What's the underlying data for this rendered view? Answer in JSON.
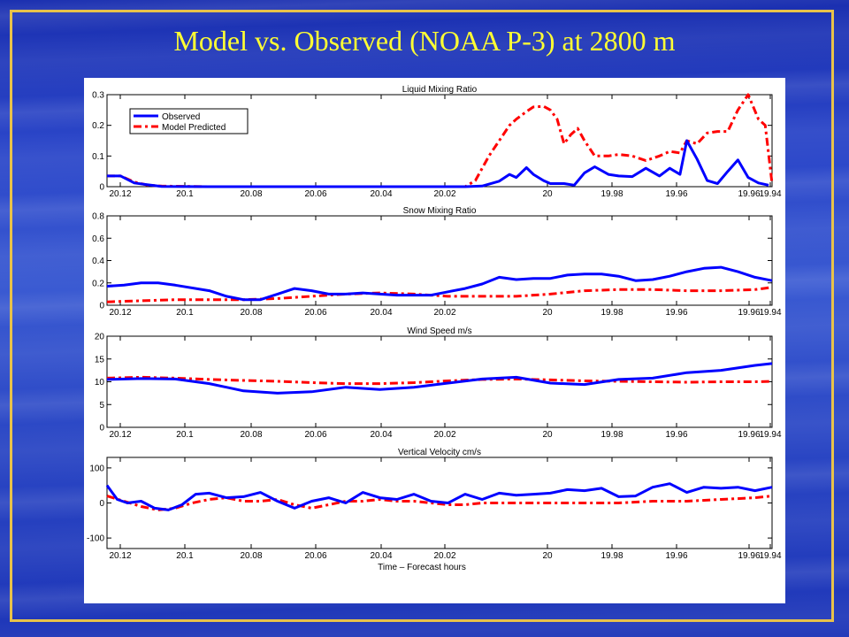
{
  "slide": {
    "title": "Model vs. Observed (NOAA P-3) at 2800 m",
    "colors": {
      "title": "#ffff33",
      "frame": "#e8c24a",
      "background": "#2a45c8"
    }
  },
  "chart_data": [
    {
      "type": "line",
      "title": "Liquid Mixing Ratio",
      "xlabel": "",
      "ylabel": "",
      "xlim": [
        20.13,
        19.935
      ],
      "ylim": [
        0,
        0.3
      ],
      "yticks": [
        "0",
        "0.1",
        "0.2",
        "0.3"
      ],
      "xticks": [
        "20.12",
        "20.1",
        "20.08",
        "20.06",
        "20.04",
        "20.02",
        "20",
        "19.98",
        "19.96",
        "19.96",
        "19.94"
      ],
      "legend": {
        "position": "top-left",
        "entries": [
          "Observed",
          "Model Predicted"
        ]
      },
      "series": [
        {
          "name": "Observed",
          "color": "#0000ff",
          "style": "solid",
          "x": [
            20.13,
            20.126,
            20.122,
            20.118,
            20.114,
            20.1,
            20.08,
            20.06,
            20.04,
            20.025,
            20.02,
            20.015,
            20.012,
            20.01,
            20.007,
            20.005,
            20.002,
            20.0,
            19.996,
            19.993,
            19.99,
            19.987,
            19.983,
            19.98,
            19.976,
            19.972,
            19.968,
            19.965,
            19.962,
            19.96,
            19.957,
            19.954,
            19.951,
            19.948,
            19.945,
            19.942,
            19.939,
            19.936
          ],
          "values": [
            0.035,
            0.035,
            0.012,
            0.006,
            0.001,
            0,
            0,
            0,
            0,
            0,
            0.002,
            0.018,
            0.04,
            0.03,
            0.062,
            0.04,
            0.02,
            0.01,
            0.01,
            0.005,
            0.045,
            0.065,
            0.04,
            0.035,
            0.033,
            0.06,
            0.035,
            0.06,
            0.04,
            0.15,
            0.09,
            0.02,
            0.01,
            0.05,
            0.087,
            0.03,
            0.012,
            0.005
          ]
        },
        {
          "name": "Model Predicted",
          "color": "#ff0000",
          "style": "dashdot",
          "x": [
            20.13,
            20.126,
            20.122,
            20.118,
            20.114,
            20.1,
            20.08,
            20.06,
            20.04,
            20.025,
            20.022,
            20.02,
            20.018,
            20.015,
            20.012,
            20.01,
            20.007,
            20.005,
            20.002,
            20.0,
            19.998,
            19.996,
            19.994,
            19.992,
            19.99,
            19.987,
            19.983,
            19.98,
            19.976,
            19.972,
            19.968,
            19.965,
            19.962,
            19.96,
            19.957,
            19.954,
            19.951,
            19.948,
            19.945,
            19.942,
            19.939,
            19.937,
            19.935
          ],
          "values": [
            0.035,
            0.035,
            0.015,
            0.005,
            0.002,
            0,
            0,
            0,
            0,
            0,
            0.02,
            0.06,
            0.1,
            0.15,
            0.2,
            0.22,
            0.245,
            0.26,
            0.262,
            0.25,
            0.22,
            0.14,
            0.17,
            0.19,
            0.15,
            0.1,
            0.1,
            0.105,
            0.1,
            0.085,
            0.1,
            0.115,
            0.11,
            0.15,
            0.14,
            0.175,
            0.18,
            0.18,
            0.25,
            0.3,
            0.22,
            0.2,
            0.01
          ]
        }
      ]
    },
    {
      "type": "line",
      "title": "Snow Mixing Ratio",
      "xlabel": "",
      "ylabel": "",
      "xlim": [
        20.13,
        19.935
      ],
      "ylim": [
        0,
        0.8
      ],
      "yticks": [
        "0",
        "0.2",
        "0.4",
        "0.6",
        "0.8"
      ],
      "xticks": [
        "20.12",
        "20.1",
        "20.08",
        "20.06",
        "20.04",
        "20.02",
        "20",
        "19.98",
        "19.96",
        "19.96",
        "19.94"
      ],
      "series": [
        {
          "name": "Observed",
          "color": "#0000ff",
          "style": "solid",
          "x": [
            20.13,
            20.125,
            20.12,
            20.115,
            20.11,
            20.1,
            20.095,
            20.09,
            20.085,
            20.08,
            20.075,
            20.07,
            20.065,
            20.06,
            20.055,
            20.05,
            20.045,
            20.04,
            20.035,
            20.03,
            20.025,
            20.02,
            20.015,
            20.01,
            20.005,
            20.0,
            19.995,
            19.99,
            19.985,
            19.98,
            19.975,
            19.97,
            19.965,
            19.96,
            19.955,
            19.95,
            19.945,
            19.94,
            19.935
          ],
          "values": [
            0.17,
            0.18,
            0.2,
            0.2,
            0.18,
            0.13,
            0.08,
            0.05,
            0.05,
            0.1,
            0.15,
            0.13,
            0.1,
            0.1,
            0.11,
            0.1,
            0.09,
            0.09,
            0.09,
            0.12,
            0.15,
            0.19,
            0.25,
            0.23,
            0.24,
            0.24,
            0.27,
            0.28,
            0.28,
            0.26,
            0.22,
            0.23,
            0.26,
            0.3,
            0.33,
            0.34,
            0.3,
            0.25,
            0.22
          ]
        },
        {
          "name": "Model Predicted",
          "color": "#ff0000",
          "style": "dashdot",
          "x": [
            20.13,
            20.12,
            20.11,
            20.1,
            20.09,
            20.08,
            20.07,
            20.06,
            20.05,
            20.04,
            20.03,
            20.02,
            20.01,
            20.0,
            19.99,
            19.98,
            19.97,
            19.96,
            19.95,
            19.94,
            19.935
          ],
          "values": [
            0.03,
            0.04,
            0.05,
            0.05,
            0.05,
            0.06,
            0.08,
            0.1,
            0.11,
            0.1,
            0.08,
            0.08,
            0.08,
            0.1,
            0.13,
            0.14,
            0.14,
            0.13,
            0.13,
            0.14,
            0.16
          ]
        }
      ]
    },
    {
      "type": "line",
      "title": "Wind Speed m/s",
      "xlabel": "",
      "ylabel": "",
      "xlim": [
        20.13,
        19.935
      ],
      "ylim": [
        0,
        20
      ],
      "yticks": [
        "0",
        "5",
        "10",
        "15",
        "20"
      ],
      "xticks": [
        "20.12",
        "20.1",
        "20.08",
        "20.06",
        "20.04",
        "20.02",
        "20",
        "19.98",
        "19.96",
        "19.96",
        "19.94"
      ],
      "series": [
        {
          "name": "Observed",
          "color": "#0000ff",
          "style": "solid",
          "x": [
            20.13,
            20.12,
            20.11,
            20.1,
            20.09,
            20.08,
            20.07,
            20.06,
            20.05,
            20.04,
            20.03,
            20.02,
            20.01,
            20.0,
            19.99,
            19.98,
            19.97,
            19.96,
            19.95,
            19.94,
            19.935
          ],
          "values": [
            10.5,
            10.7,
            10.6,
            9.6,
            8.0,
            7.5,
            7.8,
            8.8,
            8.3,
            8.8,
            9.7,
            10.6,
            11.0,
            9.7,
            9.4,
            10.5,
            10.8,
            12.0,
            12.5,
            13.6,
            14.0
          ]
        },
        {
          "name": "Model Predicted",
          "color": "#ff0000",
          "style": "dashdot",
          "x": [
            20.13,
            20.12,
            20.11,
            20.1,
            20.09,
            20.08,
            20.07,
            20.06,
            20.05,
            20.04,
            20.03,
            20.02,
            20.01,
            20.0,
            19.99,
            19.98,
            19.97,
            19.96,
            19.95,
            19.94,
            19.935
          ],
          "values": [
            10.8,
            11.0,
            10.8,
            10.5,
            10.3,
            10.1,
            9.8,
            9.6,
            9.6,
            9.8,
            10.2,
            10.5,
            10.6,
            10.4,
            10.2,
            10.1,
            10.0,
            9.9,
            10.0,
            10.0,
            10.1
          ]
        }
      ]
    },
    {
      "type": "line",
      "title": "Vertical Velocity cm/s",
      "xlabel": "Time – Forecast hours",
      "ylabel": "",
      "xlim": [
        20.13,
        19.935
      ],
      "ylim": [
        -130,
        130
      ],
      "yticks": [
        "-100",
        "0",
        "100"
      ],
      "xticks": [
        "20.12",
        "20.1",
        "20.08",
        "20.06",
        "20.04",
        "20.02",
        "20",
        "19.98",
        "19.96",
        "19.96",
        "19.94"
      ],
      "series": [
        {
          "name": "Observed",
          "color": "#0000ff",
          "style": "solid",
          "x": [
            20.13,
            20.127,
            20.124,
            20.12,
            20.116,
            20.112,
            20.108,
            20.104,
            20.1,
            20.095,
            20.09,
            20.085,
            20.08,
            20.075,
            20.07,
            20.065,
            20.06,
            20.055,
            20.05,
            20.045,
            20.04,
            20.035,
            20.03,
            20.025,
            20.02,
            20.015,
            20.01,
            20.005,
            20.0,
            19.995,
            19.99,
            19.985,
            19.98,
            19.975,
            19.97,
            19.965,
            19.96,
            19.955,
            19.95,
            19.945,
            19.94,
            19.935
          ],
          "values": [
            50,
            10,
            0,
            5,
            -15,
            -20,
            -5,
            25,
            28,
            15,
            18,
            30,
            5,
            -15,
            5,
            15,
            0,
            30,
            15,
            10,
            25,
            5,
            0,
            25,
            10,
            28,
            22,
            25,
            28,
            38,
            35,
            42,
            18,
            20,
            45,
            55,
            30,
            45,
            42,
            45,
            35,
            45
          ]
        },
        {
          "name": "Model Predicted",
          "color": "#ff0000",
          "style": "dashdot",
          "x": [
            20.13,
            20.125,
            20.12,
            20.115,
            20.11,
            20.105,
            20.1,
            20.095,
            20.09,
            20.085,
            20.08,
            20.075,
            20.07,
            20.065,
            20.06,
            20.055,
            20.05,
            20.045,
            20.04,
            20.035,
            20.03,
            20.025,
            20.02,
            20.015,
            20.01,
            20.005,
            20.0,
            19.99,
            19.98,
            19.97,
            19.96,
            19.95,
            19.94,
            19.935
          ],
          "values": [
            20,
            5,
            -10,
            -20,
            -15,
            0,
            10,
            15,
            5,
            5,
            10,
            -5,
            -15,
            -5,
            5,
            5,
            10,
            5,
            5,
            0,
            -5,
            -5,
            0,
            0,
            0,
            0,
            0,
            0,
            0,
            5,
            5,
            10,
            15,
            20
          ]
        }
      ]
    }
  ]
}
